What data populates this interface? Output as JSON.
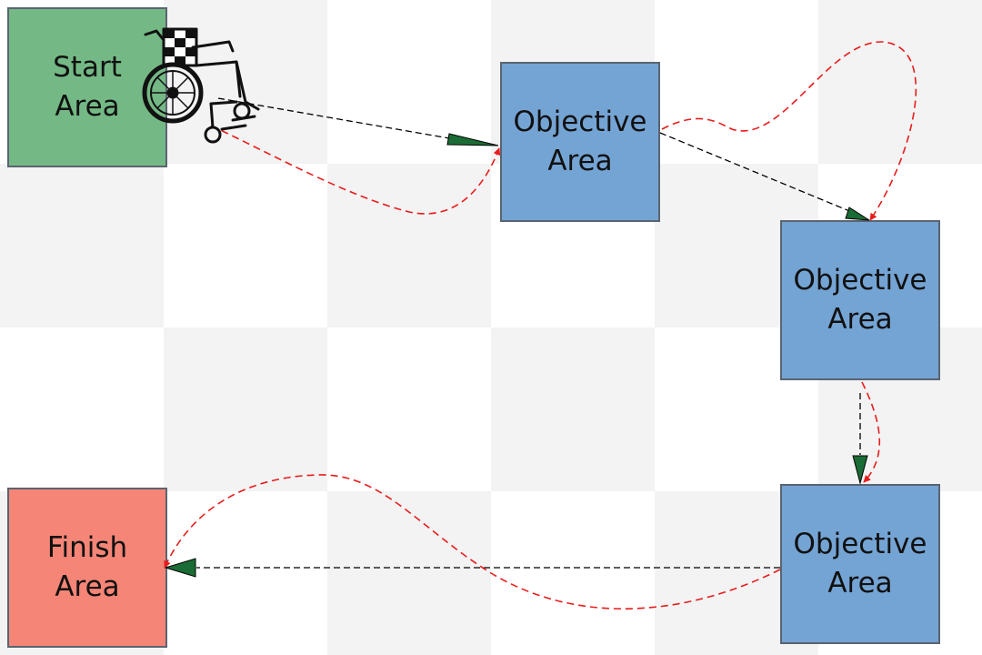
{
  "areas": {
    "start": {
      "line1": "Start",
      "line2": "Area",
      "color": "#74b985"
    },
    "obj1": {
      "line1": "Objective",
      "line2": "Area",
      "color": "#74a4d4"
    },
    "obj2": {
      "line1": "Objective",
      "line2": "Area",
      "color": "#74a4d4"
    },
    "obj3": {
      "line1": "Objective",
      "line2": "Area",
      "color": "#74a4d4"
    },
    "finish": {
      "line1": "Finish",
      "line2": "Area",
      "color": "#f58576"
    }
  },
  "board": {
    "light": "#ffffff",
    "dark": "#f3f3f3"
  },
  "paths": {
    "direct_color": "#000000",
    "actual_color": "#e81c1c",
    "arrowhead_color": "#1a6b35"
  },
  "icons": {
    "robot": "wheelchair-icon"
  }
}
